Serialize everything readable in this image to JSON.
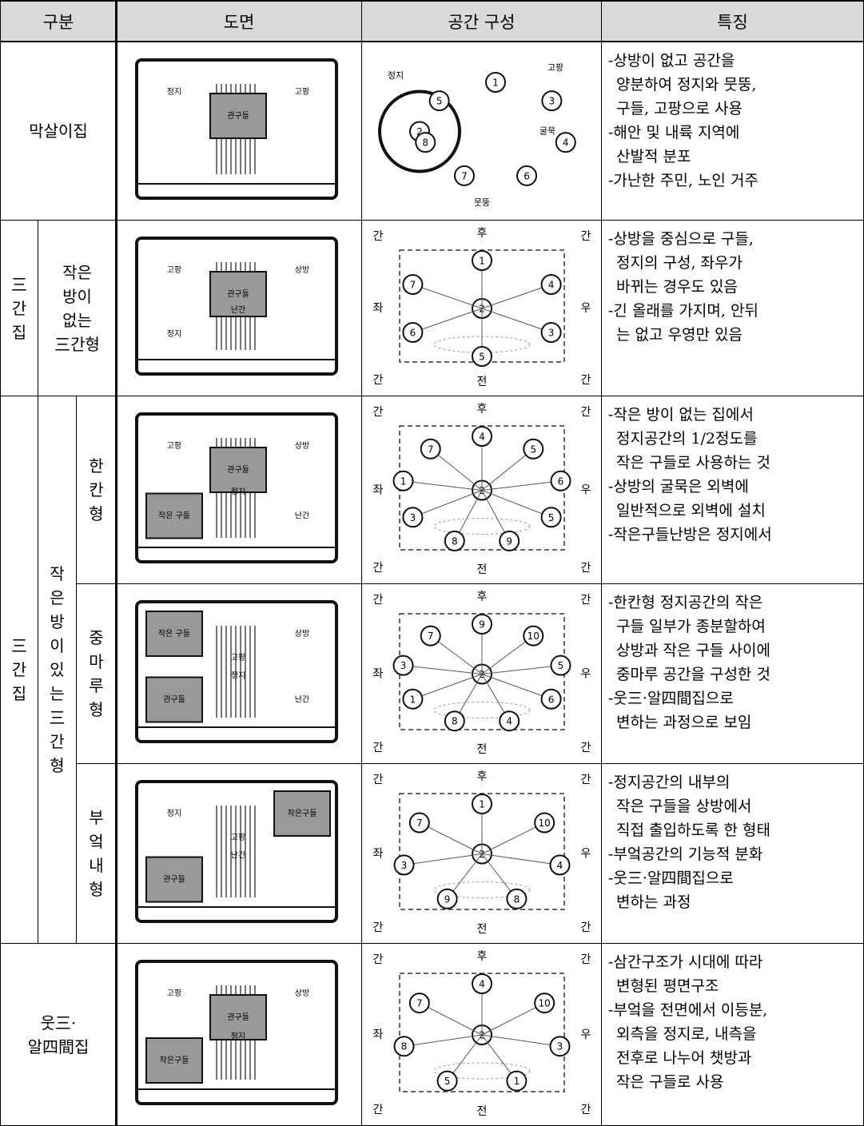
{
  "table": {
    "header": [
      "구분",
      "도면",
      "공간 구성",
      "특징"
    ],
    "category_cells": [
      {
        "lines": [
          "막살이집"
        ]
      },
      {
        "lines": [
          "三",
          "간",
          "집"
        ]
      },
      {
        "lines": [
          "작은",
          "방이",
          "없는",
          "三간형"
        ]
      },
      {
        "lines": [
          "三",
          "간",
          "집"
        ]
      },
      {
        "lines": [
          "작",
          "은",
          "방",
          "이",
          "있",
          "는",
          "三",
          "간",
          "형"
        ]
      },
      {
        "lines": [
          "한",
          "칸",
          "형"
        ]
      },
      {
        "lines": [
          "중",
          "마",
          "루",
          "형"
        ]
      },
      {
        "lines": [
          "부",
          "엌",
          "내",
          "형"
        ]
      },
      {
        "lines": [
          "웃三·",
          "알四間집"
        ]
      }
    ],
    "rows": [
      {
        "plan_labels": [
          "정지",
          "관구들",
          "고팡"
        ],
        "diagram": {
          "nodes": [
            "2",
            "1",
            "3",
            "4",
            "6",
            "7",
            "8",
            "5"
          ],
          "captions": [
            "정지",
            "굴묵",
            "고팡",
            "뭇뚱"
          ]
        },
        "features": [
          "-상방이 없고 공간을",
          "양분하여 정지와 뭇뚱,",
          "구들, 고팡으로 사용",
          "-해안 및 내륙 지역에",
          "산발적 분포",
          "-가난한 주민, 노인 거주"
        ]
      },
      {
        "plan_labels": [
          "고팡",
          "관구들",
          "상방",
          "정지",
          "난간"
        ],
        "diagram": {
          "directions": [
            "간",
            "간",
            "간",
            "간",
            "후",
            "좌",
            "우",
            "전"
          ],
          "nodes": [
            "2",
            "1",
            "4",
            "3",
            "5",
            "6",
            "7"
          ]
        },
        "features": [
          "-상방을 중심으로 구들,",
          "정지의 구성, 좌우가",
          "바뀌는 경우도 있음",
          "-긴 올래를 가지며, 안뒤",
          "는 없고 우영만 있음"
        ]
      },
      {
        "plan_labels": [
          "고팡",
          "관구들",
          "상방",
          "작은 구들",
          "정지",
          "난간"
        ],
        "diagram": {
          "directions": [
            "간",
            "간",
            "간",
            "간",
            "후",
            "좌",
            "우",
            "전"
          ],
          "nodes": [
            "2",
            "4",
            "5",
            "6",
            "5",
            "9",
            "8",
            "3",
            "1",
            "7"
          ]
        },
        "features": [
          "-작은 방이 없는 집에서",
          "정지공간의 1/2정도를",
          "작은 구들로 사용하는 것",
          "-상방의 굴묵은 외벽에",
          "일반적으로 외벽에 설치",
          "-작은구들난방은 정지에서"
        ]
      },
      {
        "plan_labels": [
          "작은 구들",
          "고팡",
          "상방",
          "관구들",
          "정지",
          "난간"
        ],
        "diagram": {
          "directions": [
            "간",
            "간",
            "간",
            "간",
            "후",
            "좌",
            "우",
            "전"
          ],
          "nodes": [
            "2",
            "9",
            "10",
            "5",
            "6",
            "4",
            "8",
            "1",
            "3",
            "7"
          ]
        },
        "features": [
          "-한칸형 정지공간의 작은",
          "구들 일부가 종분할하여",
          "상방과 작은 구들 사이에",
          "중마루 공간을 구성한 것",
          "-웃三·알四間집으로",
          "변하는 과정으로 보임"
        ]
      },
      {
        "plan_labels": [
          "정지",
          "고팡",
          "작은구들",
          "관구들",
          "난간"
        ],
        "diagram": {
          "directions": [
            "간",
            "간",
            "간",
            "간",
            "후",
            "좌",
            "우",
            "전"
          ],
          "nodes": [
            "2",
            "1",
            "10",
            "4",
            "8",
            "9",
            "3",
            "7"
          ]
        },
        "features": [
          "-정지공간의 내부의",
          "작은 구들을 상방에서",
          "직접 출입하도록 한 형태",
          "-부엌공간의 기능적 분화",
          "-웃三·알四間집으로",
          "변하는 과정"
        ]
      },
      {
        "plan_labels": [
          "고팡",
          "관구들",
          "상방",
          "작은구들",
          "정지"
        ],
        "diagram": {
          "directions": [
            "간",
            "간",
            "간",
            "간",
            "후",
            "좌",
            "우",
            "전"
          ],
          "nodes": [
            "2",
            "4",
            "10",
            "3",
            "1",
            "5",
            "8",
            "7"
          ]
        },
        "features": [
          "-삼간구조가 시대에 따라",
          "변형된 평면구조",
          "-부엌을 전면에서 이등분,",
          "외측을 정지로, 내측을",
          "전후로 나누어 챗방과",
          "작은 구들로 사용"
        ]
      }
    ]
  }
}
